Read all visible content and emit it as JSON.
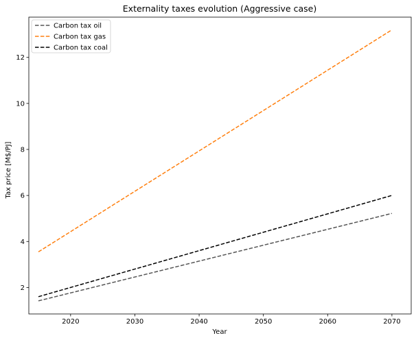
{
  "chart_data": {
    "type": "line",
    "title": "Externality taxes evolution (Aggressive case)",
    "xlabel": "Year",
    "ylabel": "Tax price [M$/PJ]",
    "xlim": [
      2013.5,
      2073
    ],
    "ylim": [
      0.85,
      13.75
    ],
    "xticks": [
      2020,
      2030,
      2040,
      2050,
      2060,
      2070
    ],
    "yticks": [
      2,
      4,
      6,
      8,
      10,
      12
    ],
    "grid": false,
    "legend_position": "top-left",
    "series": [
      {
        "name": "Carbon tax oil",
        "color": "#555555",
        "dash": "dashed",
        "x": [
          2015,
          2070
        ],
        "y": [
          1.42,
          5.22
        ]
      },
      {
        "name": "Carbon tax gas",
        "color": "#ff7f0e",
        "dash": "dashed",
        "x": [
          2015,
          2070
        ],
        "y": [
          3.55,
          13.2
        ]
      },
      {
        "name": "Carbon tax coal",
        "color": "#000000",
        "dash": "dashed",
        "x": [
          2015,
          2070
        ],
        "y": [
          1.6,
          6.0
        ]
      }
    ]
  }
}
